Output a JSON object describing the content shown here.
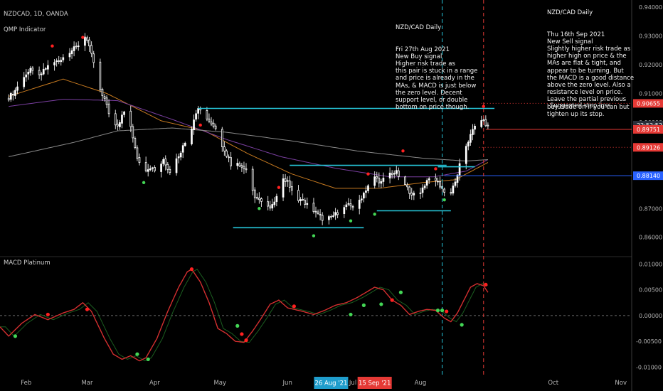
{
  "header": {
    "symbol_line": "NZDCAD, 1D, OANDA",
    "indicator": "QMP Indicator"
  },
  "annotations": {
    "buy": {
      "title": "NZD/CAD Daily",
      "body": "Fri 27th Aug 2021\nNew Buy signal\nHigher risk trade as\nthis pair is stuck in a range\nand price is already in the\nMAs, & MACD is just below\nthe zero level. Decent\nsupport level, or double\nbottom on price though."
    },
    "sell": {
      "title": "NZD/CAD Daily",
      "body": "Thu 16th Sep 2021\nNew Sell signal\nSlightly higher risk trade as\nhigher high on price & the\nMAs are flat & tight, and\nappear to be turning. But\nthe MACD is a good distance\nabove the zero level. Also a\nresistance level on price.\nLeave the partial previous\nbuy trade on if you can but\ntighten up its stop."
    },
    "stop": "Suggested stop loss"
  },
  "price_badges": [
    {
      "label": "0.90655",
      "value": 0.90655,
      "color": "#e53935",
      "outline": true
    },
    {
      "label": "22:52:52",
      "value": 0.899,
      "color": "#2a2e39",
      "outline": false
    },
    {
      "label": "0.89751",
      "value": 0.89751,
      "color": "#e53935",
      "outline": true
    },
    {
      "label": "0.89126",
      "value": 0.89126,
      "color": "#e53935",
      "outline": true
    },
    {
      "label": "0.88140",
      "value": 0.8814,
      "color": "#2962ff",
      "outline": true
    }
  ],
  "date_badges": [
    {
      "label": "26 Aug '21",
      "day": 148,
      "color": "#1f9dcc"
    },
    {
      "label": "15 Sep '21",
      "day": 168,
      "color": "#e53935"
    }
  ],
  "macd_label": "MACD Platinum",
  "colors": {
    "up": "#ffffff",
    "down": "#ffffff",
    "cyan": "#26c6da",
    "ma_orange": "#c77a20",
    "ma_purple": "#7a3fa0",
    "ma_gray": "#8a8a8a",
    "macd_main": "#d32f2f",
    "macd_signal": "#1b5e20",
    "green": "#43d655",
    "red": "#ff2020"
  },
  "chart_data": {
    "type": "candlestick",
    "x_ticks": [
      {
        "label": "Feb",
        "day": 8
      },
      {
        "label": "Mar",
        "day": 36
      },
      {
        "label": "Apr",
        "day": 67
      },
      {
        "label": "May",
        "day": 97
      },
      {
        "label": "Jun",
        "day": 128
      },
      {
        "label": "Jul",
        "day": 158
      },
      {
        "label": "Aug",
        "day": 189
      },
      {
        "label": "Oct",
        "day": 250
      },
      {
        "label": "Nov",
        "day": 281
      }
    ],
    "x_range_days": [
      -4,
      286
    ],
    "price_axis": {
      "ticks": [
        {
          "label": "0.94000",
          "v": 0.94
        },
        {
          "label": "0.93000",
          "v": 0.93
        },
        {
          "label": "0.92000",
          "v": 0.92
        },
        {
          "label": "0.91000",
          "v": 0.91
        },
        {
          "label": "0.90000",
          "v": 0.9
        },
        {
          "label": "0.87000",
          "v": 0.87
        },
        {
          "label": "0.86000",
          "v": 0.86
        }
      ],
      "range": [
        0.8535,
        0.9425
      ]
    },
    "macd_axis": {
      "ticks": [
        {
          "label": "0.01000",
          "v": 0.01
        },
        {
          "label": "0.00500",
          "v": 0.005
        },
        {
          "label": "0.00000",
          "v": 0.0
        },
        {
          "label": "-0.00500",
          "v": -0.005
        },
        {
          "label": "-0.01000",
          "v": -0.01
        }
      ],
      "range": [
        -0.0112,
        0.0113
      ]
    },
    "close_anchors": [
      [
        0,
        0.9085
      ],
      [
        3,
        0.911
      ],
      [
        6,
        0.9155
      ],
      [
        10,
        0.918
      ],
      [
        14,
        0.916
      ],
      [
        18,
        0.9195
      ],
      [
        23,
        0.9215
      ],
      [
        27,
        0.924
      ],
      [
        31,
        0.926
      ],
      [
        35,
        0.9295
      ],
      [
        38,
        0.924
      ],
      [
        41,
        0.913
      ],
      [
        44,
        0.908
      ],
      [
        47,
        0.901
      ],
      [
        50,
        0.899
      ],
      [
        53,
        0.9035
      ],
      [
        56,
        0.8985
      ],
      [
        59,
        0.888
      ],
      [
        62,
        0.8835
      ],
      [
        65,
        0.8845
      ],
      [
        68,
        0.883
      ],
      [
        71,
        0.887
      ],
      [
        74,
        0.883
      ],
      [
        77,
        0.887
      ],
      [
        80,
        0.8915
      ],
      [
        83,
        0.8955
      ],
      [
        85,
        0.901
      ],
      [
        87,
        0.905
      ],
      [
        90,
        0.903
      ],
      [
        93,
        0.899
      ],
      [
        96,
        0.8965
      ],
      [
        99,
        0.89
      ],
      [
        102,
        0.8855
      ],
      [
        106,
        0.885
      ],
      [
        110,
        0.882
      ],
      [
        113,
        0.8745
      ],
      [
        116,
        0.8725
      ],
      [
        119,
        0.87
      ],
      [
        122,
        0.8715
      ],
      [
        125,
        0.8815
      ],
      [
        128,
        0.879
      ],
      [
        132,
        0.874
      ],
      [
        136,
        0.872
      ],
      [
        140,
        0.869
      ],
      [
        144,
        0.8665
      ],
      [
        147,
        0.8665
      ],
      [
        150,
        0.868
      ],
      [
        153,
        0.87
      ],
      [
        156,
        0.871
      ],
      [
        159,
        0.8705
      ],
      [
        162,
        0.874
      ],
      [
        165,
        0.878
      ],
      [
        168,
        0.881
      ],
      [
        171,
        0.879
      ],
      [
        174,
        0.882
      ],
      [
        178,
        0.8825
      ],
      [
        181,
        0.879
      ],
      [
        184,
        0.876
      ],
      [
        187,
        0.874
      ],
      [
        190,
        0.877
      ],
      [
        193,
        0.881
      ],
      [
        196,
        0.88
      ],
      [
        199,
        0.877
      ],
      [
        201,
        0.874
      ],
      [
        203,
        0.8755
      ],
      [
        205,
        0.879
      ],
      [
        207,
        0.885
      ],
      [
        209,
        0.8905
      ],
      [
        211,
        0.8935
      ],
      [
        213,
        0.897
      ],
      [
        215,
        0.9
      ],
      [
        217,
        0.9012
      ],
      [
        219,
        0.899
      ],
      [
        220,
        0.8985
      ]
    ],
    "hlines": [
      {
        "from": 87,
        "to": 223,
        "value": 0.9048,
        "color": "cyan"
      },
      {
        "from": 129,
        "to": 201,
        "value": 0.885,
        "color": "cyan"
      },
      {
        "from": 197,
        "to": 214,
        "value": 0.8845,
        "color": "cyan"
      },
      {
        "from": 169,
        "to": 203,
        "value": 0.8692,
        "color": "cyan"
      },
      {
        "from": 103,
        "to": 163,
        "value": 0.8633,
        "color": "cyan"
      },
      {
        "from": 200,
        "to": 286,
        "value": 0.8814,
        "color": "blue"
      },
      {
        "from": 217,
        "to": 286,
        "value": 0.90655,
        "color": "red_dotted"
      },
      {
        "from": 219,
        "to": 286,
        "value": 0.89751,
        "color": "red_solid"
      },
      {
        "from": 216,
        "to": 286,
        "value": 0.89126,
        "color": "red_dotted"
      }
    ],
    "vlines": [
      {
        "day": 199,
        "color": "cyan"
      },
      {
        "day": 218,
        "color": "red"
      }
    ],
    "signals": [
      {
        "day": 20,
        "price": 0.9265,
        "type": "sell"
      },
      {
        "day": 34,
        "price": 0.9295,
        "type": "sell"
      },
      {
        "day": 62,
        "price": 0.879,
        "type": "buy"
      },
      {
        "day": 88,
        "price": 0.899,
        "type": "sell"
      },
      {
        "day": 115,
        "price": 0.87,
        "type": "buy"
      },
      {
        "day": 124,
        "price": 0.8773,
        "type": "sell"
      },
      {
        "day": 140,
        "price": 0.8605,
        "type": "buy"
      },
      {
        "day": 157,
        "price": 0.8657,
        "type": "buy"
      },
      {
        "day": 165,
        "price": 0.882,
        "type": "sell"
      },
      {
        "day": 168,
        "price": 0.868,
        "type": "buy"
      },
      {
        "day": 181,
        "price": 0.89,
        "type": "sell"
      },
      {
        "day": 196,
        "price": 0.8838,
        "type": "sell"
      },
      {
        "day": 200,
        "price": 0.873,
        "type": "buy"
      },
      {
        "day": 218,
        "price": 0.9055,
        "type": "sell"
      }
    ],
    "ma_anchors": {
      "orange": [
        [
          0,
          0.909
        ],
        [
          25,
          0.915
        ],
        [
          45,
          0.91
        ],
        [
          70,
          0.9005
        ],
        [
          90,
          0.897
        ],
        [
          110,
          0.889
        ],
        [
          130,
          0.882
        ],
        [
          150,
          0.877
        ],
        [
          170,
          0.877
        ],
        [
          190,
          0.879
        ],
        [
          205,
          0.88
        ],
        [
          215,
          0.884
        ],
        [
          220,
          0.886
        ]
      ],
      "purple": [
        [
          0,
          0.9055
        ],
        [
          25,
          0.908
        ],
        [
          50,
          0.9075
        ],
        [
          75,
          0.901
        ],
        [
          100,
          0.894
        ],
        [
          125,
          0.888
        ],
        [
          150,
          0.884
        ],
        [
          175,
          0.881
        ],
        [
          195,
          0.881
        ],
        [
          210,
          0.883
        ],
        [
          220,
          0.887
        ]
      ],
      "gray": [
        [
          0,
          0.888
        ],
        [
          30,
          0.893
        ],
        [
          50,
          0.897
        ],
        [
          75,
          0.898
        ],
        [
          100,
          0.8965
        ],
        [
          130,
          0.8935
        ],
        [
          160,
          0.89
        ],
        [
          190,
          0.8875
        ],
        [
          210,
          0.8865
        ],
        [
          220,
          0.887
        ]
      ]
    },
    "macd_anchors": [
      [
        -4,
        -0.0022
      ],
      [
        0,
        -0.004
      ],
      [
        6,
        -0.0015
      ],
      [
        12,
        0.0002
      ],
      [
        18,
        -0.0008
      ],
      [
        25,
        0.0005
      ],
      [
        30,
        0.0012
      ],
      [
        34,
        0.0025
      ],
      [
        38,
        0.0008
      ],
      [
        44,
        -0.0045
      ],
      [
        48,
        -0.0075
      ],
      [
        52,
        -0.0085
      ],
      [
        56,
        -0.0078
      ],
      [
        60,
        -0.0088
      ],
      [
        63,
        -0.0082
      ],
      [
        68,
        -0.0045
      ],
      [
        73,
        0.0008
      ],
      [
        78,
        0.0055
      ],
      [
        82,
        0.0085
      ],
      [
        84,
        0.009
      ],
      [
        88,
        0.0065
      ],
      [
        92,
        0.0025
      ],
      [
        96,
        -0.0025
      ],
      [
        100,
        -0.0035
      ],
      [
        104,
        -0.005
      ],
      [
        108,
        -0.0052
      ],
      [
        112,
        -0.003
      ],
      [
        116,
        -0.0005
      ],
      [
        120,
        0.0022
      ],
      [
        124,
        0.003
      ],
      [
        128,
        0.0015
      ],
      [
        135,
        0.0008
      ],
      [
        140,
        0.0002
      ],
      [
        145,
        0.001
      ],
      [
        150,
        0.002
      ],
      [
        155,
        0.0025
      ],
      [
        160,
        0.0035
      ],
      [
        164,
        0.0045
      ],
      [
        168,
        0.0055
      ],
      [
        172,
        0.005
      ],
      [
        176,
        0.003
      ],
      [
        180,
        0.002
      ],
      [
        184,
        0.0002
      ],
      [
        188,
        0.0008
      ],
      [
        192,
        0.0012
      ],
      [
        196,
        0.001
      ],
      [
        200,
        -0.0005
      ],
      [
        203,
        -0.0012
      ],
      [
        206,
        0.0005
      ],
      [
        209,
        0.003
      ],
      [
        212,
        0.0055
      ],
      [
        215,
        0.0062
      ],
      [
        218,
        0.0058
      ],
      [
        220,
        0.0045
      ]
    ],
    "macd_signals": [
      {
        "day": 3,
        "value": -0.004,
        "type": "buy"
      },
      {
        "day": 18,
        "value": 0.0002,
        "type": "sell"
      },
      {
        "day": 36,
        "value": 0.0012,
        "type": "sell"
      },
      {
        "day": 59,
        "value": -0.0075,
        "type": "buy"
      },
      {
        "day": 64,
        "value": -0.0085,
        "type": "buy"
      },
      {
        "day": 84,
        "value": 0.009,
        "type": "sell"
      },
      {
        "day": 105,
        "value": -0.002,
        "type": "buy"
      },
      {
        "day": 107,
        "value": -0.0036,
        "type": "sell"
      },
      {
        "day": 109,
        "value": -0.0048,
        "type": "sell"
      },
      {
        "day": 131,
        "value": 0.0018,
        "type": "sell"
      },
      {
        "day": 157,
        "value": 0.0002,
        "type": "buy"
      },
      {
        "day": 163,
        "value": 0.002,
        "type": "buy"
      },
      {
        "day": 171,
        "value": 0.0022,
        "type": "buy"
      },
      {
        "day": 176,
        "value": 0.003,
        "type": "sell"
      },
      {
        "day": 180,
        "value": 0.0045,
        "type": "buy"
      },
      {
        "day": 197,
        "value": 0.001,
        "type": "buy"
      },
      {
        "day": 199,
        "value": 0.001,
        "type": "buy"
      },
      {
        "day": 201,
        "value": 0.0008,
        "type": "sell"
      },
      {
        "day": 208,
        "value": -0.0018,
        "type": "buy"
      },
      {
        "day": 219,
        "value": 0.006,
        "type": "sell"
      }
    ]
  }
}
